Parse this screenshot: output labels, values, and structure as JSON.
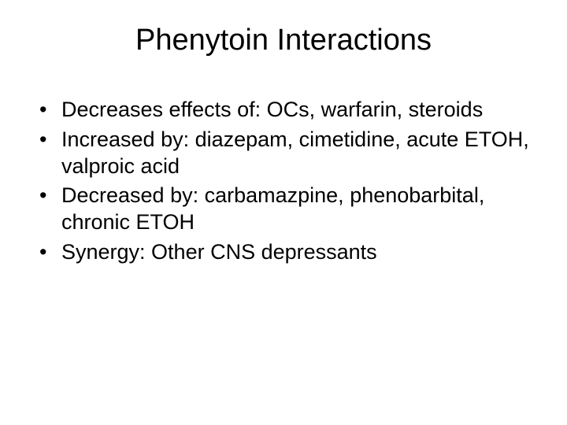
{
  "slide": {
    "title": "Phenytoin Interactions",
    "bullets": [
      "Decreases effects of: OCs, warfarin, steroids",
      "Increased by: diazepam, cimetidine, acute ETOH, valproic acid",
      "Decreased by: carbamazpine, phenobarbital, chronic ETOH",
      "Synergy: Other CNS depressants"
    ],
    "styling": {
      "background_color": "#ffffff",
      "text_color": "#000000",
      "title_fontsize": 38,
      "body_fontsize": 27,
      "font_family": "Arial"
    }
  }
}
